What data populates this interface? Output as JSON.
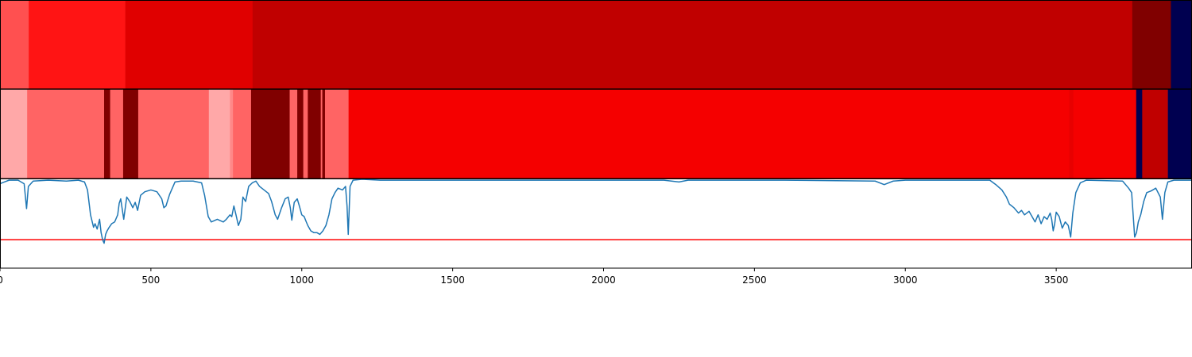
{
  "chart_data": {
    "type": "heatmap",
    "xlim": [
      0,
      3950
    ],
    "xticks": [
      0,
      500,
      1000,
      1500,
      2000,
      2500,
      3000,
      3500
    ],
    "x_tick_labels": [
      "0",
      "500",
      "1000",
      "1500",
      "2000",
      "2500",
      "3000",
      "3500"
    ],
    "title": "",
    "xlabel": "",
    "ylabel": "",
    "grid": false,
    "tracks": [
      {
        "type": "segment-heatmap",
        "segments": [
          {
            "start": 0,
            "end": 95,
            "color": "#ff5050"
          },
          {
            "start": 95,
            "end": 415,
            "color": "#ff1414"
          },
          {
            "start": 415,
            "end": 837,
            "color": "#e00000"
          },
          {
            "start": 837,
            "end": 3752,
            "color": "#c00000"
          },
          {
            "start": 3752,
            "end": 3880,
            "color": "#800000"
          },
          {
            "start": 3880,
            "end": 3950,
            "color": "#000050"
          }
        ]
      },
      {
        "type": "segment-heatmap",
        "segments": [
          {
            "start": 0,
            "end": 90,
            "color": "#ffa8a8"
          },
          {
            "start": 90,
            "end": 345,
            "color": "#ff6464"
          },
          {
            "start": 345,
            "end": 365,
            "color": "#800000"
          },
          {
            "start": 365,
            "end": 408,
            "color": "#ff6464"
          },
          {
            "start": 408,
            "end": 458,
            "color": "#800000"
          },
          {
            "start": 458,
            "end": 692,
            "color": "#ff6464"
          },
          {
            "start": 692,
            "end": 762,
            "color": "#ffa8a8"
          },
          {
            "start": 762,
            "end": 772,
            "color": "#ff8888"
          },
          {
            "start": 772,
            "end": 832,
            "color": "#ff6464"
          },
          {
            "start": 832,
            "end": 960,
            "color": "#800000"
          },
          {
            "start": 960,
            "end": 985,
            "color": "#ff6464"
          },
          {
            "start": 985,
            "end": 1005,
            "color": "#800000"
          },
          {
            "start": 1005,
            "end": 1020,
            "color": "#ff6464"
          },
          {
            "start": 1020,
            "end": 1063,
            "color": "#800000"
          },
          {
            "start": 1063,
            "end": 1068,
            "color": "#ff6464"
          },
          {
            "start": 1068,
            "end": 1077,
            "color": "#800000"
          },
          {
            "start": 1077,
            "end": 1155,
            "color": "#ff6464"
          },
          {
            "start": 1155,
            "end": 3543,
            "color": "#f50000"
          },
          {
            "start": 3543,
            "end": 3557,
            "color": "#e80000"
          },
          {
            "start": 3557,
            "end": 3765,
            "color": "#f50000"
          },
          {
            "start": 3765,
            "end": 3785,
            "color": "#000050"
          },
          {
            "start": 3785,
            "end": 3870,
            "color": "#c00000"
          },
          {
            "start": 3870,
            "end": 3950,
            "color": "#000050"
          }
        ]
      },
      {
        "type": "line",
        "ylim": [
          0,
          1
        ],
        "line_color": "#1f77b4",
        "threshold": 0.32,
        "threshold_color": "#ff0000",
        "points": [
          [
            0,
            0.95
          ],
          [
            15,
            0.97
          ],
          [
            30,
            0.99
          ],
          [
            60,
            0.99
          ],
          [
            80,
            0.95
          ],
          [
            88,
            0.67
          ],
          [
            94,
            0.92
          ],
          [
            110,
            0.98
          ],
          [
            160,
            0.99
          ],
          [
            220,
            0.98
          ],
          [
            260,
            0.99
          ],
          [
            280,
            0.97
          ],
          [
            290,
            0.88
          ],
          [
            300,
            0.6
          ],
          [
            310,
            0.46
          ],
          [
            315,
            0.5
          ],
          [
            322,
            0.44
          ],
          [
            330,
            0.55
          ],
          [
            335,
            0.4
          ],
          [
            340,
            0.32
          ],
          [
            345,
            0.28
          ],
          [
            350,
            0.38
          ],
          [
            355,
            0.42
          ],
          [
            360,
            0.45
          ],
          [
            370,
            0.5
          ],
          [
            380,
            0.52
          ],
          [
            390,
            0.6
          ],
          [
            395,
            0.73
          ],
          [
            400,
            0.78
          ],
          [
            410,
            0.55
          ],
          [
            420,
            0.8
          ],
          [
            430,
            0.75
          ],
          [
            440,
            0.68
          ],
          [
            448,
            0.74
          ],
          [
            456,
            0.65
          ],
          [
            466,
            0.82
          ],
          [
            480,
            0.86
          ],
          [
            500,
            0.88
          ],
          [
            520,
            0.86
          ],
          [
            536,
            0.78
          ],
          [
            543,
            0.68
          ],
          [
            550,
            0.7
          ],
          [
            562,
            0.83
          ],
          [
            580,
            0.97
          ],
          [
            600,
            0.98
          ],
          [
            640,
            0.98
          ],
          [
            668,
            0.96
          ],
          [
            678,
            0.82
          ],
          [
            690,
            0.58
          ],
          [
            700,
            0.52
          ],
          [
            720,
            0.55
          ],
          [
            740,
            0.52
          ],
          [
            750,
            0.55
          ],
          [
            762,
            0.6
          ],
          [
            768,
            0.58
          ],
          [
            775,
            0.7
          ],
          [
            782,
            0.6
          ],
          [
            790,
            0.48
          ],
          [
            798,
            0.55
          ],
          [
            805,
            0.8
          ],
          [
            814,
            0.75
          ],
          [
            824,
            0.92
          ],
          [
            836,
            0.96
          ],
          [
            848,
            0.98
          ],
          [
            860,
            0.92
          ],
          [
            875,
            0.88
          ],
          [
            890,
            0.84
          ],
          [
            900,
            0.75
          ],
          [
            912,
            0.6
          ],
          [
            920,
            0.55
          ],
          [
            932,
            0.67
          ],
          [
            945,
            0.78
          ],
          [
            955,
            0.8
          ],
          [
            962,
            0.68
          ],
          [
            967,
            0.54
          ],
          [
            975,
            0.74
          ],
          [
            985,
            0.78
          ],
          [
            992,
            0.7
          ],
          [
            1000,
            0.6
          ],
          [
            1008,
            0.58
          ],
          [
            1015,
            0.52
          ],
          [
            1020,
            0.48
          ],
          [
            1030,
            0.42
          ],
          [
            1040,
            0.4
          ],
          [
            1050,
            0.4
          ],
          [
            1060,
            0.38
          ],
          [
            1070,
            0.42
          ],
          [
            1080,
            0.48
          ],
          [
            1090,
            0.6
          ],
          [
            1100,
            0.78
          ],
          [
            1110,
            0.85
          ],
          [
            1120,
            0.9
          ],
          [
            1135,
            0.88
          ],
          [
            1145,
            0.92
          ],
          [
            1150,
            0.7
          ],
          [
            1154,
            0.38
          ],
          [
            1160,
            0.92
          ],
          [
            1170,
            0.99
          ],
          [
            1200,
            1.0
          ],
          [
            1260,
            0.99
          ],
          [
            1400,
            0.99
          ],
          [
            1600,
            0.99
          ],
          [
            1800,
            0.99
          ],
          [
            2200,
            0.99
          ],
          [
            2250,
            0.97
          ],
          [
            2280,
            0.99
          ],
          [
            2600,
            0.99
          ],
          [
            2900,
            0.98
          ],
          [
            2930,
            0.94
          ],
          [
            2960,
            0.98
          ],
          [
            3000,
            0.99
          ],
          [
            3280,
            0.99
          ],
          [
            3300,
            0.94
          ],
          [
            3320,
            0.88
          ],
          [
            3335,
            0.8
          ],
          [
            3345,
            0.72
          ],
          [
            3360,
            0.68
          ],
          [
            3375,
            0.62
          ],
          [
            3385,
            0.65
          ],
          [
            3395,
            0.6
          ],
          [
            3410,
            0.64
          ],
          [
            3420,
            0.58
          ],
          [
            3430,
            0.52
          ],
          [
            3440,
            0.6
          ],
          [
            3450,
            0.5
          ],
          [
            3460,
            0.58
          ],
          [
            3470,
            0.55
          ],
          [
            3480,
            0.62
          ],
          [
            3485,
            0.55
          ],
          [
            3490,
            0.42
          ],
          [
            3495,
            0.5
          ],
          [
            3500,
            0.63
          ],
          [
            3510,
            0.58
          ],
          [
            3520,
            0.45
          ],
          [
            3530,
            0.52
          ],
          [
            3540,
            0.48
          ],
          [
            3548,
            0.35
          ],
          [
            3555,
            0.62
          ],
          [
            3565,
            0.85
          ],
          [
            3580,
            0.96
          ],
          [
            3600,
            0.99
          ],
          [
            3720,
            0.98
          ],
          [
            3740,
            0.9
          ],
          [
            3750,
            0.85
          ],
          [
            3756,
            0.55
          ],
          [
            3760,
            0.35
          ],
          [
            3766,
            0.4
          ],
          [
            3772,
            0.52
          ],
          [
            3780,
            0.6
          ],
          [
            3790,
            0.75
          ],
          [
            3800,
            0.85
          ],
          [
            3815,
            0.87
          ],
          [
            3830,
            0.9
          ],
          [
            3845,
            0.8
          ],
          [
            3852,
            0.55
          ],
          [
            3860,
            0.85
          ],
          [
            3870,
            0.97
          ],
          [
            3890,
            0.99
          ],
          [
            3950,
            0.99
          ]
        ]
      }
    ]
  }
}
